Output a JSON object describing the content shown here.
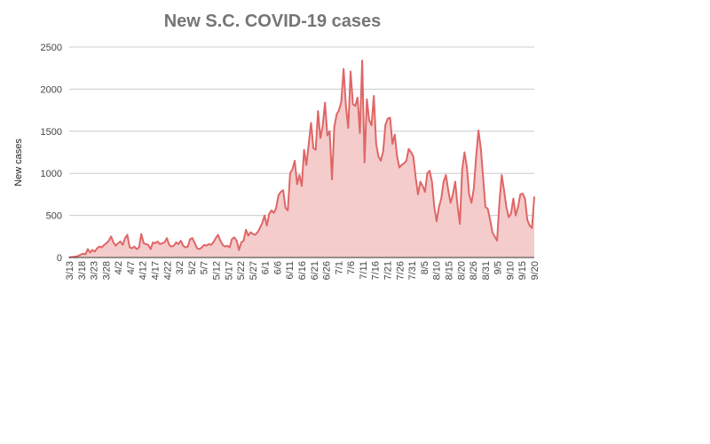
{
  "colors": {
    "series_line": "#e06666",
    "series_fill": "#f4cccc",
    "title": "#757575",
    "grid": "#cccccc",
    "background": "#ffffff"
  },
  "chart_data": {
    "type": "area",
    "title": "New S.C. COVID-19 cases",
    "xlabel": "",
    "ylabel": "New cases",
    "ylim": [
      0,
      2500
    ],
    "yticks": [
      "0",
      "500",
      "1000",
      "1500",
      "2000",
      "2500"
    ],
    "grid": true,
    "legend": "none",
    "x_ticks": [
      "3/13",
      "3/18",
      "3/23",
      "3/28",
      "4/2",
      "4/7",
      "4/12",
      "4/17",
      "4/22",
      "3/2",
      "5/2",
      "5/7",
      "5/12",
      "5/17",
      "5/22",
      "5/27",
      "6/1",
      "6/6",
      "6/11",
      "6/16",
      "6/21",
      "6/26",
      "7/1",
      "7/6",
      "7/11",
      "7/16",
      "7/21",
      "7/26",
      "7/31",
      "8/5",
      "8/10",
      "8/15",
      "8/20",
      "8/26",
      "8/31",
      "9/5",
      "9/10",
      "9/15",
      "9/20"
    ],
    "series": [
      {
        "values": [
          3,
          5,
          8,
          12,
          20,
          35,
          45,
          40,
          100,
          60,
          90,
          70,
          110,
          130,
          120,
          150,
          170,
          200,
          250,
          180,
          140,
          170,
          190,
          150,
          230,
          270,
          120,
          110,
          130,
          100,
          120,
          280,
          170,
          160,
          150,
          100,
          180,
          170,
          190,
          160,
          170,
          180,
          230,
          150,
          130,
          140,
          180,
          160,
          200,
          140,
          120,
          130,
          220,
          230,
          170,
          110,
          100,
          120,
          150,
          140,
          160,
          150,
          180,
          230,
          270,
          200,
          150,
          130,
          140,
          120,
          220,
          240,
          200,
          90,
          180,
          200,
          330,
          260,
          300,
          280,
          270,
          300,
          350,
          410,
          500,
          380,
          520,
          560,
          530,
          590,
          740,
          780,
          800,
          590,
          560,
          1000,
          1050,
          1150,
          870,
          980,
          850,
          1280,
          1100,
          1350,
          1600,
          1300,
          1280,
          1740,
          1420,
          1560,
          1840,
          1450,
          1500,
          930,
          1550,
          1700,
          1750,
          1850,
          2240,
          1800,
          1540,
          2210,
          1820,
          1800,
          1900,
          1480,
          2340,
          1130,
          1880,
          1630,
          1570,
          1920,
          1350,
          1200,
          1150,
          1260,
          1580,
          1650,
          1660,
          1350,
          1460,
          1200,
          1070,
          1100,
          1120,
          1150,
          1290,
          1250,
          1200,
          950,
          750,
          900,
          850,
          780,
          1000,
          1030,
          900,
          600,
          430,
          600,
          700,
          900,
          980,
          800,
          650,
          750,
          900,
          620,
          400,
          1050,
          1250,
          1080,
          750,
          650,
          820,
          1200,
          1510,
          1300,
          950,
          600,
          580,
          450,
          300,
          250,
          200,
          650,
          980,
          800,
          600,
          480,
          520,
          700,
          500,
          600,
          750,
          760,
          700,
          450,
          380,
          350,
          720
        ]
      }
    ]
  }
}
